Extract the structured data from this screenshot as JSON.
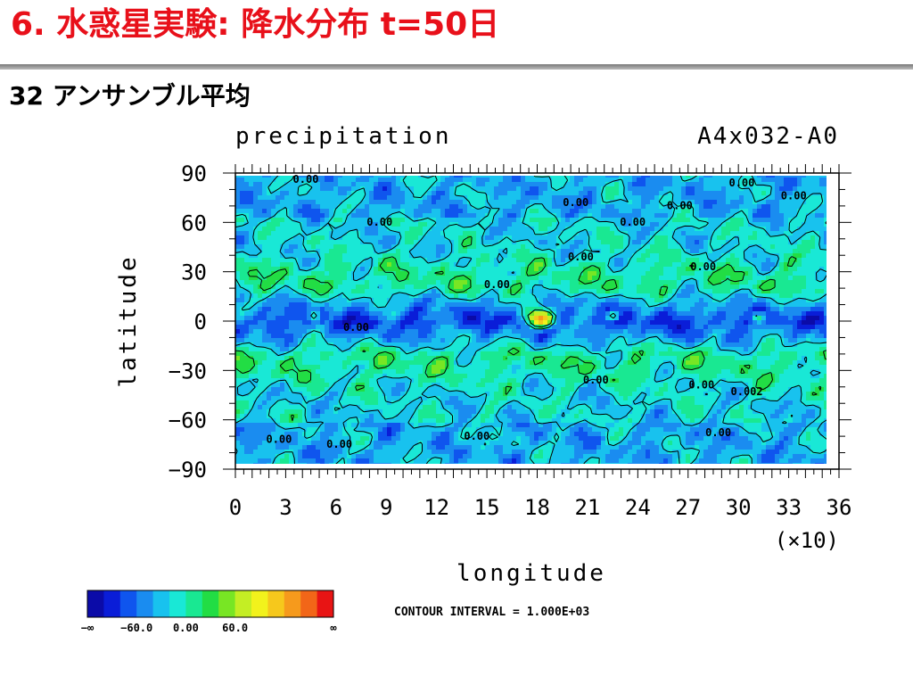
{
  "slide": {
    "title": "6. 水惑星実験: 降水分布 t=50日",
    "subtitle": "32 アンサンブル平均"
  },
  "chart_data": {
    "type": "heatmap",
    "variable_label": "precipitation",
    "run_label": "A4x032-A0",
    "xlabel": "longitude",
    "ylabel": "latitude",
    "x_unit_label": "(×10)",
    "xlim": [
      0,
      36
    ],
    "ylim": [
      -90,
      90
    ],
    "x_ticks": [
      0,
      3,
      6,
      9,
      12,
      15,
      18,
      21,
      24,
      27,
      30,
      33,
      36
    ],
    "y_ticks": [
      90,
      60,
      30,
      0,
      -30,
      -60,
      -90
    ],
    "y_tick_labels": [
      "90",
      "60",
      "30",
      "0",
      "−30",
      "−60",
      "−90"
    ],
    "grid": false,
    "contour_interval_label": "CONTOUR INTERVAL = 1.000E+03",
    "contour_labels": [
      {
        "text": "0.00",
        "lon": 4.2,
        "lat": 84
      },
      {
        "text": "0.00",
        "lon": 30.2,
        "lat": 82
      },
      {
        "text": "0.00",
        "lon": 33.3,
        "lat": 74
      },
      {
        "text": "0.00",
        "lon": 20.3,
        "lat": 70
      },
      {
        "text": "0.00",
        "lon": 26.5,
        "lat": 68
      },
      {
        "text": "0.00",
        "lon": 23.7,
        "lat": 58
      },
      {
        "text": "0.00",
        "lon": 8.6,
        "lat": 58
      },
      {
        "text": "0.00",
        "lon": 20.6,
        "lat": 37
      },
      {
        "text": "0.00",
        "lon": 27.9,
        "lat": 31
      },
      {
        "text": "0.00",
        "lon": 15.6,
        "lat": 20
      },
      {
        "text": "0.00",
        "lon": 7.2,
        "lat": -6
      },
      {
        "text": "0.00",
        "lon": 21.5,
        "lat": -38
      },
      {
        "text": "0.00",
        "lon": 27.8,
        "lat": -41
      },
      {
        "text": "0.002",
        "lon": 30.5,
        "lat": -45
      },
      {
        "text": "0.00",
        "lon": 28.8,
        "lat": -70
      },
      {
        "text": "0.00",
        "lon": 14.4,
        "lat": -72
      },
      {
        "text": "0.00",
        "lon": 2.6,
        "lat": -74
      },
      {
        "text": "0.00",
        "lon": 6.2,
        "lat": -77
      }
    ],
    "colorbar": {
      "colors": [
        "#0b0ba8",
        "#0a1dd8",
        "#0f55ee",
        "#1a8cf0",
        "#18c2ee",
        "#19e8d6",
        "#19e892",
        "#22dd44",
        "#78e624",
        "#c4ee24",
        "#f2f21c",
        "#f6c81c",
        "#f69a1c",
        "#f26618",
        "#e81414"
      ],
      "tick_labels": [
        "−∞",
        "−60.0",
        "0.00",
        "60.0",
        "∞"
      ]
    }
  }
}
